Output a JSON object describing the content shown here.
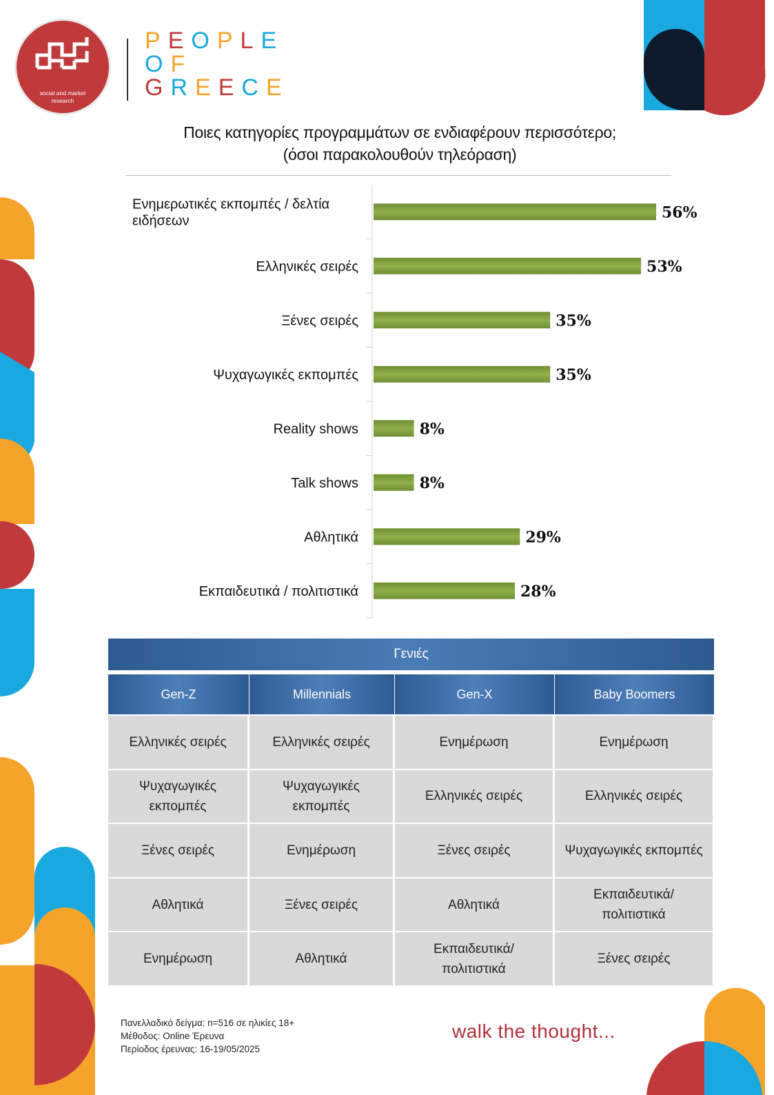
{
  "brand": {
    "logo_line1": "social and market",
    "logo_line2": "research",
    "pog_line1": "PEOPLE",
    "pog_line2": "OF",
    "pog_line3": "GREECE"
  },
  "title_line1": "Ποιες κατηγορίες προγραμμάτων σε ενδιαφέρουν περισσότερο;",
  "title_line2": "(όσοι παρακολουθούν τηλεόραση)",
  "chart_data": {
    "type": "bar",
    "orientation": "horizontal",
    "categories": [
      "Ενημερωτικές εκπομπές / δελτία ειδήσεων",
      "Ελληνικές σειρές",
      "Ξένες σειρές",
      "Ψυχαγωγικές εκπομπές",
      "Reality shows",
      "Talk shows",
      "Αθλητικά",
      "Εκπαιδευτικά / πολιτιστικά"
    ],
    "values": [
      56,
      53,
      35,
      35,
      8,
      8,
      29,
      28
    ],
    "value_labels": [
      "56%",
      "53%",
      "35%",
      "35%",
      "8%",
      "8%",
      "29%",
      "28%"
    ],
    "bar_color": "#7a9a3c",
    "grid": false
  },
  "table": {
    "header": "Γενιές",
    "columns": [
      "Gen-Z",
      "Millennials",
      "Gen-X",
      "Baby Boomers"
    ],
    "rows": [
      [
        "Ελληνικές σειρές",
        "Ελληνικές σειρές",
        "Ενημέρωση",
        "Ενημέρωση"
      ],
      [
        "Ψυχαγωγικές εκπομπές",
        "Ψυχαγωγικές εκπομπές",
        "Ελληνικές σειρές",
        "Ελληνικές σειρές"
      ],
      [
        "Ξένες σειρές",
        "Ενημέρωση",
        "Ξένες σειρές",
        "Ψυχαγωγικές εκπομπές"
      ],
      [
        "Αθλητικά",
        "Ξένες σειρές",
        "Αθλητικά",
        "Εκπαιδευτικά/ πολιτιστικά"
      ],
      [
        "Ενημέρωση",
        "Αθλητικά",
        "Εκπαιδευτικά/ πολιτιστικά",
        "Ξένες σειρές"
      ]
    ]
  },
  "footer": {
    "note1": "Πανελλαδικό δείγμα: n=516 σε ηλικίες 18+",
    "note2": "Μέθοδος: Online Έρευνα",
    "note3": "Περίοδος έρευνας: 16-19/05/2025",
    "tagline": "walk the thought..."
  },
  "colors": {
    "red": "#c0393b",
    "blue": "#1aa8e0",
    "orange": "#f6a32c",
    "navy": "#0d1a2b",
    "table_blue": "#3a6aa6",
    "cell_gray": "#d9d9d9"
  }
}
